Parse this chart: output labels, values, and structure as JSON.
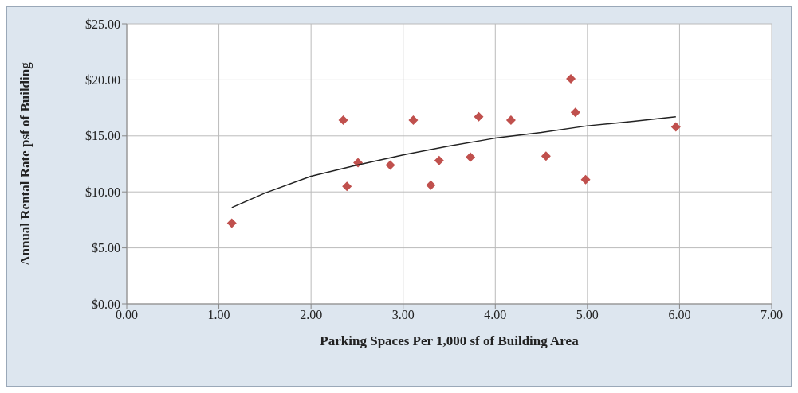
{
  "chart_data": {
    "type": "scatter",
    "xlabel": "Parking Spaces Per 1,000 sf of Building Area",
    "ylabel": "Annual Rental Rate psf of Building",
    "xlim": [
      0,
      7
    ],
    "xticks": [
      {
        "value": 0,
        "label": "0.00"
      },
      {
        "value": 1,
        "label": "1.00"
      },
      {
        "value": 2,
        "label": "2.00"
      },
      {
        "value": 3,
        "label": "3.00"
      },
      {
        "value": 4,
        "label": "4.00"
      },
      {
        "value": 5,
        "label": "5.00"
      },
      {
        "value": 6,
        "label": "6.00"
      },
      {
        "value": 7,
        "label": "7.00"
      }
    ],
    "ylim": [
      0,
      25
    ],
    "yticks": [
      {
        "value": 0,
        "label": "$0.00"
      },
      {
        "value": 5,
        "label": "$5.00"
      },
      {
        "value": 10,
        "label": "$10.00"
      },
      {
        "value": 15,
        "label": "$15.00"
      },
      {
        "value": 20,
        "label": "$20.00"
      },
      {
        "value": 25,
        "label": "$25.00"
      }
    ],
    "grid": true,
    "marker": "diamond",
    "series": [
      {
        "type": "scatter",
        "color": "#c0504d",
        "x": [
          1.14,
          2.35,
          2.39,
          2.51,
          2.86,
          3.11,
          3.3,
          3.39,
          3.73,
          3.82,
          4.17,
          4.55,
          4.82,
          4.87,
          4.98,
          5.96
        ],
        "values": [
          7.2,
          16.4,
          10.5,
          12.6,
          12.4,
          16.4,
          10.6,
          12.8,
          13.1,
          16.7,
          16.4,
          13.2,
          20.1,
          17.1,
          11.1,
          15.8
        ]
      },
      {
        "type": "line",
        "color": "#222222",
        "marker": "none",
        "line_style": "solid",
        "x": [
          1.14,
          1.5,
          2,
          2.5,
          3,
          3.5,
          4,
          4.5,
          5,
          5.5,
          5.96
        ],
        "values": [
          8.6,
          9.9,
          11.4,
          12.4,
          13.3,
          14.1,
          14.8,
          15.3,
          15.9,
          16.3,
          16.7
        ]
      }
    ]
  }
}
